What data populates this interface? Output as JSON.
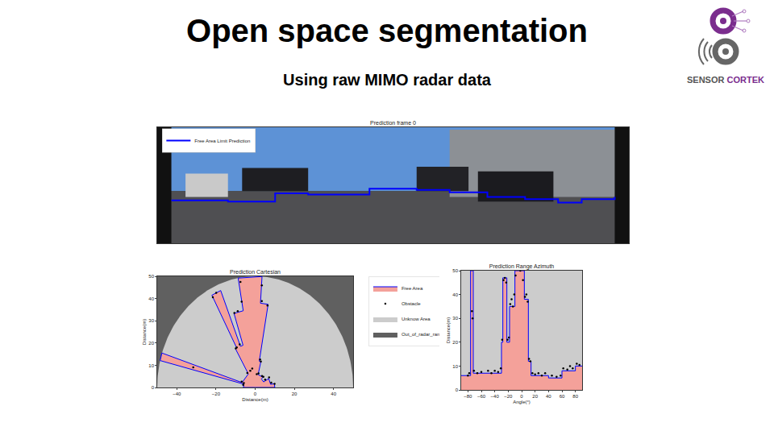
{
  "slide": {
    "title": "Open space segmentation",
    "subtitle": "Using raw MIMO radar data",
    "logo": [
      "SENSOR",
      "CORTEK"
    ]
  },
  "chart_data": [
    {
      "type": "line",
      "title": "Prediction frame 0",
      "xlim": [
        0,
        100
      ],
      "ylim": [
        0,
        100
      ],
      "tick_labels": false,
      "legend": "upper left",
      "x": [
        3,
        15,
        25,
        32,
        45,
        55,
        62,
        70,
        78,
        85,
        90,
        97
      ],
      "series": [
        {
          "name": "Free Area Limit Prediction",
          "color": "#0000ff",
          "line_style": "step",
          "values": [
            37,
            36,
            43,
            42,
            47,
            46,
            44,
            40,
            38,
            35,
            38,
            40
          ]
        }
      ]
    },
    {
      "type": "area",
      "title": "Prediction Cartesian",
      "xlabel": "Distance(m)",
      "ylabel": "Distance(m)",
      "xlim": [
        -50,
        50
      ],
      "ylim": [
        0,
        50
      ],
      "xticks": [
        {
          "value": -40,
          "label": "−40"
        },
        {
          "value": -20,
          "label": "−20"
        },
        0,
        20,
        40
      ],
      "yticks": [
        0,
        10,
        20,
        30,
        40,
        50
      ],
      "legend": "right",
      "radar_range": 50,
      "series": [
        {
          "name": "Free Area",
          "color": "#f4a19a",
          "x": [
            0,
            -6,
            -5.8,
            -48.5,
            -47.6,
            -6.7,
            -3.5,
            -10,
            -9.4,
            -22.1,
            -17.6,
            -7.5,
            -6.2,
            -10.8,
            -6.1,
            -8.7,
            3.5,
            2.7,
            6.6,
            2.1,
            2.9,
            1.5,
            3.9,
            3.2,
            4.3,
            6.9,
            7.9,
            9.8,
            10,
            0
          ],
          "values": [
            0,
            0,
            1.5,
            12.1,
            15.5,
            2.2,
            6.1,
            17.3,
            17.7,
            41.5,
            43.6,
            18.5,
            19.0,
            33.3,
            34.5,
            49.2,
            49.9,
            37.9,
            37.4,
            11.8,
            11.6,
            5.8,
            4.6,
            3.8,
            2.5,
            4.0,
            1.4,
            1.7,
            0,
            0
          ]
        },
        {
          "name": "Obstacle",
          "color": "#000000",
          "type": "scatter",
          "marker": "dot",
          "x": [
            -6.1,
            -5.8,
            -6.9,
            -31.6,
            -4,
            -9.9,
            -9.4,
            -21.6,
            -19.9,
            -7.9,
            -10.6,
            -8.9,
            -6.9,
            -7.5,
            3.4,
            3.4,
            6.3,
            2.5,
            2.9,
            1.7,
            3.5,
            4.2,
            5.1,
            7.1,
            8.2,
            9.9,
            -2.5,
            0.8,
            -1.5
          ],
          "values": [
            1.2,
            2,
            2.6,
            9.1,
            6.5,
            17.6,
            18,
            40.6,
            42.6,
            19.4,
            33.5,
            34.3,
            38.6,
            47.5,
            45.9,
            38.9,
            36.9,
            12.6,
            11.7,
            6.3,
            5.2,
            4.8,
            3.5,
            4.5,
            2.2,
            1.6,
            7.5,
            6,
            8.5
          ]
        },
        {
          "name": "Unknow Area",
          "color": "#cccccc"
        },
        {
          "name": "Out_of_radar_range",
          "color": "#606060"
        }
      ]
    },
    {
      "type": "area",
      "title": "Prediction Range Azimuth",
      "xlabel": "Angle(°)",
      "ylabel": "Distance(m)",
      "xlim": [
        -90,
        90
      ],
      "ylim": [
        0,
        50
      ],
      "xticks": [
        {
          "value": -80,
          "label": "−80"
        },
        {
          "value": -60,
          "label": "−60"
        },
        {
          "value": -40,
          "label": "−40"
        },
        {
          "value": -20,
          "label": "−20"
        },
        0,
        20,
        40,
        60,
        80
      ],
      "yticks": [
        0,
        10,
        20,
        30,
        40,
        50
      ],
      "series": [
        {
          "name": "Free Area",
          "color": "#f4a19a",
          "line_style": "step",
          "x": [
            -90,
            -76,
            -72,
            -30,
            -28,
            -22,
            -18,
            -10,
            4,
            10,
            14,
            40,
            60,
            80,
            90
          ],
          "values": [
            6,
            50,
            7,
            20,
            47,
            20,
            35,
            50,
            38,
            12,
            6,
            5,
            8,
            10,
            10
          ]
        },
        {
          "name": "Obstacle",
          "color": "#000000",
          "type": "scatter",
          "marker": "dot",
          "x": [
            -80,
            -78,
            -74,
            -73,
            -71,
            -66,
            -60,
            -50,
            -45,
            -40,
            -35,
            -31,
            -29,
            -27,
            -25,
            -23,
            -21,
            -19,
            -17,
            -15,
            -13,
            -11,
            -9,
            -2,
            2,
            5,
            7,
            9,
            11,
            13,
            16,
            20,
            25,
            30,
            35,
            45,
            52,
            58,
            62,
            68,
            72,
            76,
            82,
            86
          ],
          "values": [
            6,
            7,
            33,
            30,
            8,
            7,
            7.5,
            8,
            7,
            8,
            7.5,
            9,
            21,
            46,
            47,
            45,
            21,
            22,
            36,
            38,
            35,
            40,
            48,
            50,
            46,
            39,
            40,
            37,
            13,
            12,
            7,
            6.5,
            7,
            6,
            7,
            6,
            5.5,
            6,
            9,
            8.5,
            10,
            9,
            11,
            10.5
          ]
        },
        {
          "name": "Unknow Area",
          "color": "#cccccc"
        }
      ]
    }
  ]
}
